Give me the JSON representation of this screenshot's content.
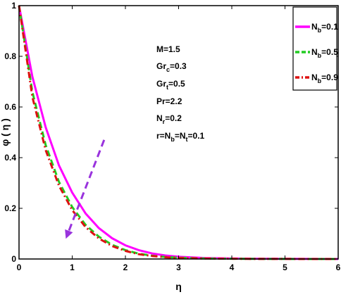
{
  "chart_data": {
    "type": "line",
    "xlabel": "η",
    "ylabel": "φ ( η )",
    "xlim": [
      0,
      6
    ],
    "ylim": [
      0,
      1
    ],
    "xticks": [
      0,
      1,
      2,
      3,
      4,
      5,
      6
    ],
    "yticks": [
      0,
      0.2,
      0.4,
      0.6,
      0.8,
      1
    ],
    "ytick_labels": [
      "0",
      "0.2",
      "0.4",
      "0.6",
      "0.8",
      "1"
    ],
    "grid": false,
    "legend_position": "top-right",
    "x": [
      0,
      0.25,
      0.5,
      0.75,
      1,
      1.25,
      1.5,
      1.75,
      2,
      2.25,
      2.5,
      2.75,
      3,
      3.5,
      4,
      4.5,
      5,
      5.5,
      6
    ],
    "series": [
      {
        "name": "N_b=0.1",
        "label_main": "N",
        "label_sub": "b",
        "label_rest": "=0.1",
        "color": "#ff00ff",
        "dash": "solid",
        "values": [
          1.0,
          0.72,
          0.52,
          0.37,
          0.262,
          0.18,
          0.122,
          0.082,
          0.054,
          0.035,
          0.022,
          0.014,
          0.009,
          0.004,
          0.002,
          0.001,
          0.0005,
          0.0002,
          0.0
        ]
      },
      {
        "name": "N_b=0.5",
        "label_main": "N",
        "label_sub": "b",
        "label_rest": "=0.5",
        "color": "#22cc22",
        "dash": "dashed",
        "values": [
          1.0,
          0.66,
          0.45,
          0.305,
          0.205,
          0.135,
          0.088,
          0.056,
          0.035,
          0.021,
          0.013,
          0.008,
          0.005,
          0.002,
          0.001,
          0.0005,
          0.0002,
          0.0001,
          0.0
        ]
      },
      {
        "name": "N_b=0.9",
        "label_main": "N",
        "label_sub": "b",
        "label_rest": "=0.9",
        "color": "#dd1111",
        "dash": "dashdot",
        "values": [
          1.0,
          0.64,
          0.43,
          0.29,
          0.193,
          0.126,
          0.081,
          0.051,
          0.032,
          0.019,
          0.012,
          0.007,
          0.004,
          0.002,
          0.001,
          0.0004,
          0.0002,
          0.0001,
          0.0
        ]
      }
    ],
    "annotations": {
      "parameters": [
        {
          "main": "M=1.5",
          "sub": "",
          "rest": ""
        },
        {
          "main": "Gr",
          "sub": "c",
          "rest": "=0.3"
        },
        {
          "main": "Gr",
          "sub": "t",
          "rest": "=0.5"
        },
        {
          "main": "Pr=2.2",
          "sub": "",
          "rest": ""
        },
        {
          "main": "N",
          "sub": "r",
          "rest": "=0.2"
        },
        {
          "main": "r=N",
          "sub": "b",
          "rest": "=N",
          "sub2": "t",
          "rest2": "=0.1"
        }
      ],
      "arrow": {
        "color": "#9933dd",
        "from": [
          1.6,
          0.47
        ],
        "to": [
          0.88,
          0.08
        ]
      }
    }
  }
}
